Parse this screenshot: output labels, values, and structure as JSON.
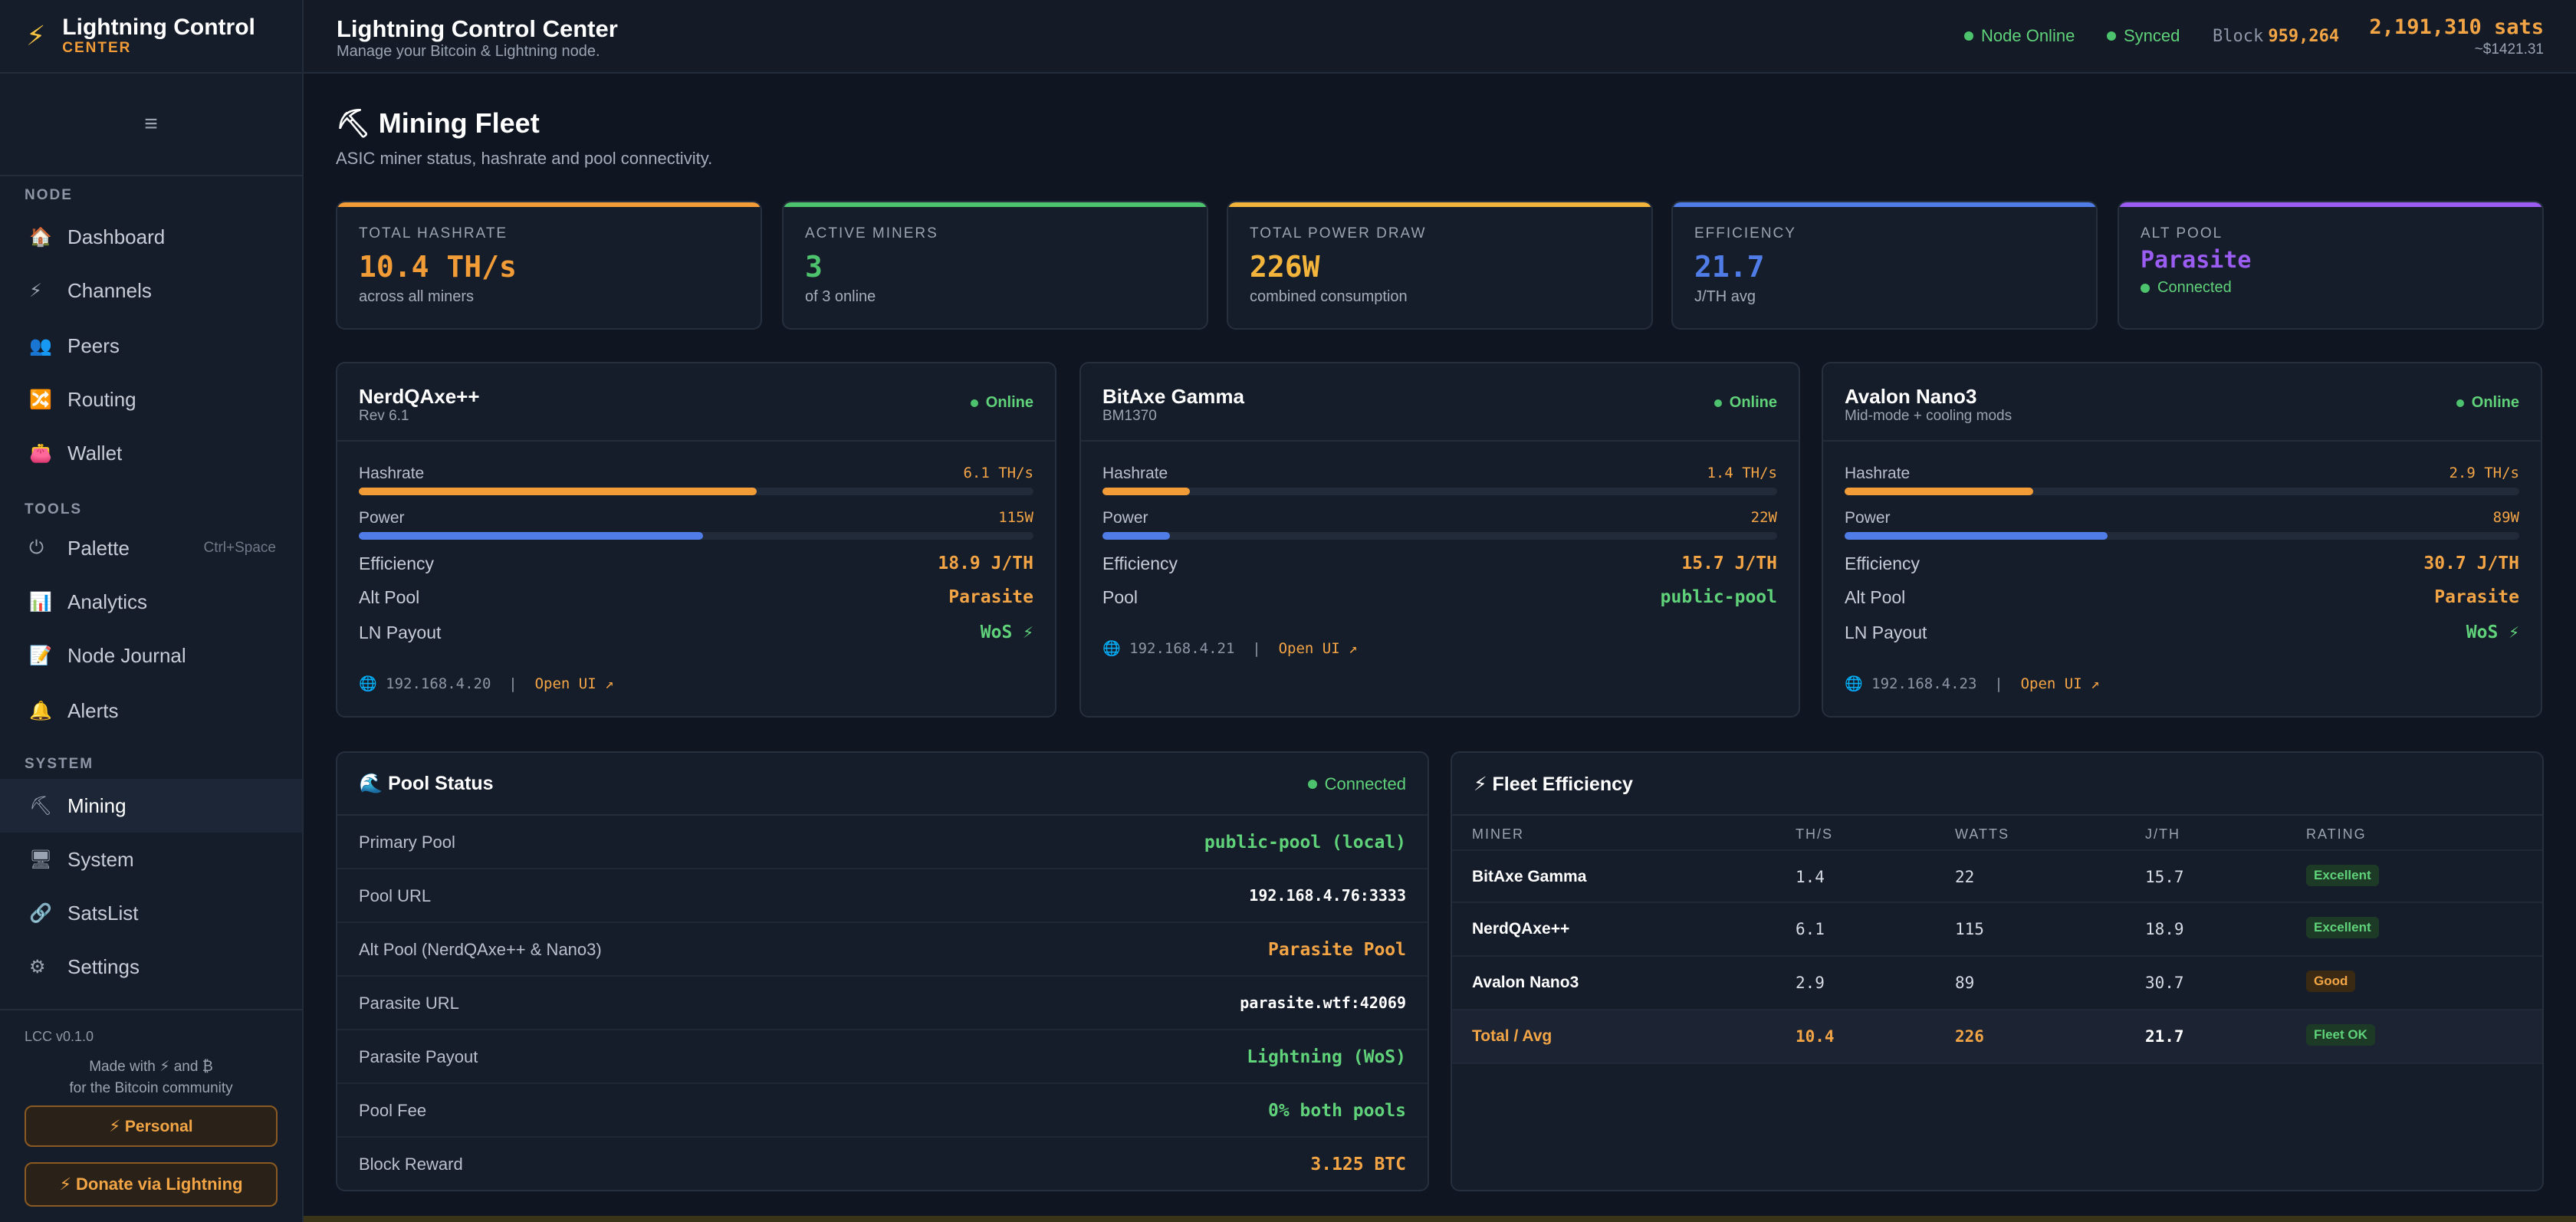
{
  "brand": {
    "icon": "lightning-bolt-icon",
    "name": "Lightning Control",
    "tag": "CENTER"
  },
  "sidebar": {
    "collapse_icon": "≡",
    "sections": {
      "node": "NODE",
      "tools": "TOOLS",
      "system": "SYSTEM"
    },
    "items": [
      {
        "label": "Dashboard",
        "icon": "🏠"
      },
      {
        "label": "Channels",
        "icon": "⚡"
      },
      {
        "label": "Peers",
        "icon": "👥"
      },
      {
        "label": "Routing",
        "icon": "🔀"
      },
      {
        "label": "Wallet",
        "icon": "👛"
      },
      {
        "label": "Palette",
        "icon": "⏻",
        "shortcut": "Ctrl+Space"
      },
      {
        "label": "Analytics",
        "icon": "📊"
      },
      {
        "label": "Node Journal",
        "icon": "📝"
      },
      {
        "label": "Alerts",
        "icon": "🔔"
      },
      {
        "label": "Mining",
        "icon": "⛏"
      },
      {
        "label": "System",
        "icon": "🖥"
      },
      {
        "label": "SatsList",
        "icon": "🔗"
      },
      {
        "label": "Settings",
        "icon": "⚙"
      }
    ],
    "version": "LCC v0.1.0",
    "made_line1": "Made with ⚡ and ₿",
    "made_line2": "for the Bitcoin community",
    "personal_button": "⚡ Personal",
    "donate_button": "⚡ Donate via Lightning"
  },
  "header": {
    "title": "Lightning Control Center",
    "subtitle": "Manage your Bitcoin & Lightning node.",
    "node_status": "Node Online",
    "sync_status": "Synced",
    "block_label": "Block",
    "block_height": "959,264",
    "balance": "2,191,310 sats",
    "balance_usd": "~$1421.31"
  },
  "page": {
    "title": "⛏ Mining Fleet",
    "subtitle": "ASIC miner status, hashrate and pool connectivity."
  },
  "stats": [
    {
      "label": "TOTAL HASHRATE",
      "value": "10.4 TH/s",
      "sub": "across all miners",
      "color": "#f29c38"
    },
    {
      "label": "ACTIVE MINERS",
      "value": "3",
      "sub": "of 3 online",
      "color": "#4cc36c"
    },
    {
      "label": "TOTAL POWER DRAW",
      "value": "226W",
      "sub": "combined consumption",
      "color": "#f3b43c"
    },
    {
      "label": "EFFICIENCY",
      "value": "21.7",
      "sub": "J/TH avg",
      "color": "#4f7ce6"
    },
    {
      "label": "ALT POOL",
      "value": "Parasite",
      "sub": "Connected",
      "color": "#9b5cf2"
    }
  ],
  "miners": [
    {
      "name": "NerdQAxe++",
      "model": "Rev 6.1",
      "status": "Online",
      "hashrate_label": "Hashrate",
      "hashrate": "6.1 TH/s",
      "hashrate_pct": 59,
      "power_label": "Power",
      "power": "115W",
      "power_pct": 51,
      "rows": [
        {
          "k": "Efficiency",
          "v": "18.9 J/TH",
          "color": "#f3a546"
        },
        {
          "k": "Alt Pool",
          "v": "Parasite",
          "color": "#f3a546"
        },
        {
          "k": "LN Payout",
          "v": "WoS ⚡",
          "color": "#5fd27a"
        }
      ],
      "ip": "192.168.4.20",
      "link": "Open UI ↗"
    },
    {
      "name": "BitAxe Gamma",
      "model": "BM1370",
      "status": "Online",
      "hashrate_label": "Hashrate",
      "hashrate": "1.4 TH/s",
      "hashrate_pct": 13,
      "power_label": "Power",
      "power": "22W",
      "power_pct": 10,
      "rows": [
        {
          "k": "Efficiency",
          "v": "15.7 J/TH",
          "color": "#f3a546"
        },
        {
          "k": "Pool",
          "v": "public-pool",
          "color": "#5fd27a"
        }
      ],
      "ip": "192.168.4.21",
      "link": "Open UI ↗"
    },
    {
      "name": "Avalon Nano3",
      "model": "Mid-mode + cooling mods",
      "status": "Online",
      "hashrate_label": "Hashrate",
      "hashrate": "2.9 TH/s",
      "hashrate_pct": 28,
      "power_label": "Power",
      "power": "89W",
      "power_pct": 39,
      "rows": [
        {
          "k": "Efficiency",
          "v": "30.7 J/TH",
          "color": "#f3a546"
        },
        {
          "k": "Alt Pool",
          "v": "Parasite",
          "color": "#f3a546"
        },
        {
          "k": "LN Payout",
          "v": "WoS ⚡",
          "color": "#5fd27a"
        }
      ],
      "ip": "192.168.4.23",
      "link": "Open UI ↗"
    }
  ],
  "pool": {
    "title": "🌊 Pool Status",
    "status": "Connected",
    "rows": [
      {
        "k": "Primary Pool",
        "v": "public-pool (local)",
        "color": "#5fd27a"
      },
      {
        "k": "Pool URL",
        "v": "192.168.4.76:3333",
        "color": "#ffffff"
      },
      {
        "k": "Alt Pool (NerdQAxe++ & Nano3)",
        "v": "Parasite Pool",
        "color": "#f3a546"
      },
      {
        "k": "Parasite URL",
        "v": "parasite.wtf:42069",
        "color": "#ffffff"
      },
      {
        "k": "Parasite Payout",
        "v": "Lightning (WoS)",
        "color": "#5fd27a"
      },
      {
        "k": "Pool Fee",
        "v": "0% both pools",
        "color": "#5fd27a"
      },
      {
        "k": "Block Reward",
        "v": "3.125 BTC",
        "color": "#f3a546"
      }
    ]
  },
  "efficiency": {
    "title": "⚡ Fleet Efficiency",
    "columns": [
      "MINER",
      "TH/S",
      "WATTS",
      "J/TH",
      "RATING"
    ],
    "rows": [
      {
        "miner": "BitAxe Gamma",
        "ths": "1.4",
        "watts": "22",
        "jth": "15.7",
        "rating": "Excellent",
        "tone": "green"
      },
      {
        "miner": "NerdQAxe++",
        "ths": "6.1",
        "watts": "115",
        "jth": "18.9",
        "rating": "Excellent",
        "tone": "green"
      },
      {
        "miner": "Avalon Nano3",
        "ths": "2.9",
        "watts": "89",
        "jth": "30.7",
        "rating": "Good",
        "tone": "amber"
      }
    ],
    "total": {
      "miner": "Total / Avg",
      "ths": "10.4",
      "watts": "226",
      "jth": "21.7",
      "rating": "Fleet OK"
    }
  }
}
